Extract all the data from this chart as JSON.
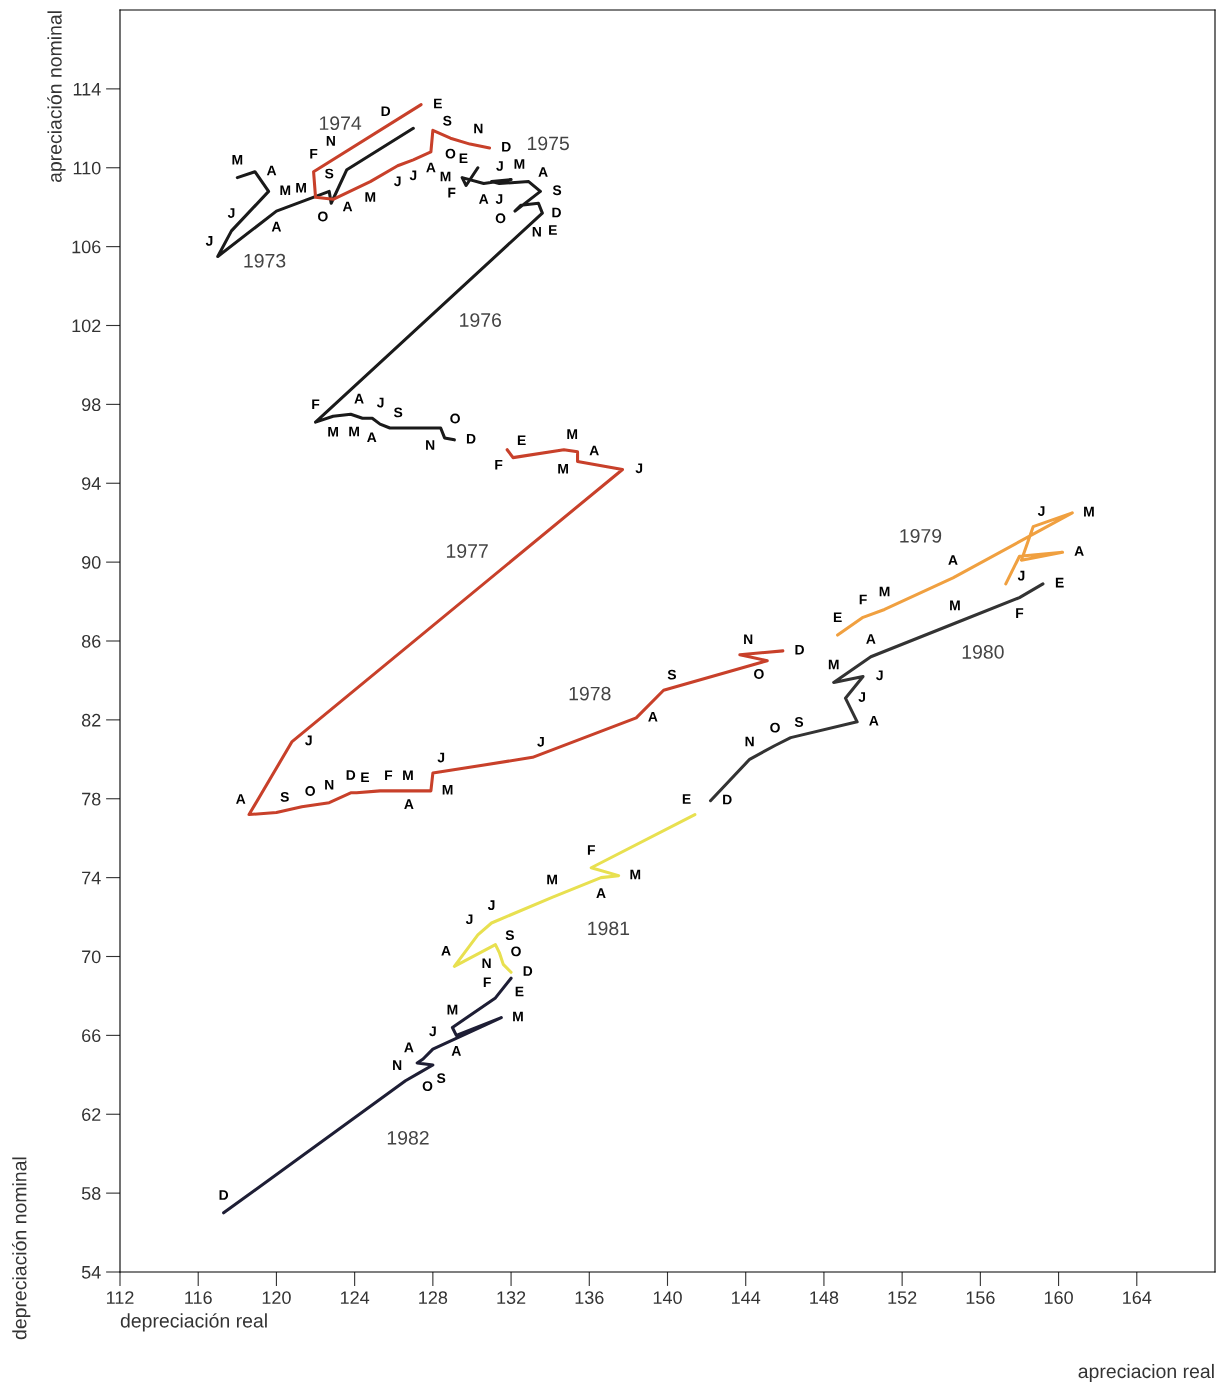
{
  "chart_data": {
    "type": "line",
    "xlabel": "depreciación real",
    "ylabel": "apreciación nominal",
    "xlim": [
      112,
      168
    ],
    "ylim": [
      54,
      118
    ],
    "xticks": [
      112,
      116,
      120,
      124,
      128,
      132,
      136,
      140,
      144,
      148,
      152,
      156,
      160,
      164
    ],
    "yticks": [
      54,
      58,
      62,
      66,
      70,
      74,
      78,
      82,
      86,
      90,
      94,
      98,
      102,
      106,
      110,
      114
    ],
    "grid": false,
    "marker": "none",
    "line_style": "solid",
    "series": [
      {
        "color": "#1a1a1a",
        "x": [
          118.0,
          118.9,
          119.6,
          117.7,
          117.0,
          120.0,
          122.7,
          122.8,
          123.6,
          127.0
        ],
        "values": [
          109.5,
          109.8,
          108.8,
          106.8,
          105.5,
          107.8,
          108.8,
          108.2,
          109.9,
          112.0
        ],
        "value_labels": [
          "M",
          "A",
          "M",
          "J",
          "J",
          "A",
          "S",
          "O",
          "N",
          "D"
        ]
      },
      {
        "color": "#c8402a",
        "x": [
          127.4,
          121.9,
          122.0,
          122.9,
          124.8,
          126.2,
          127.0,
          127.9,
          128.0,
          128.9,
          129.9,
          130.9
        ],
        "values": [
          113.2,
          109.8,
          108.5,
          108.4,
          109.3,
          110.1,
          110.4,
          110.8,
          111.9,
          111.5,
          111.2,
          111.0
        ],
        "value_labels": [
          "E",
          "F",
          "M",
          "A",
          "M",
          "J",
          "J",
          "A",
          "S",
          "O",
          "N",
          "D"
        ]
      },
      {
        "color": "#1a1a1a",
        "x": [
          130.3,
          129.7,
          129.5,
          130.6,
          132.0,
          131.0,
          131.4,
          132.9,
          133.5,
          132.2,
          132.5,
          133.4,
          133.6,
          122.0,
          122.9,
          123.8,
          124.4,
          124.9,
          125.3,
          125.8,
          128.4,
          128.6,
          129.1
        ],
        "values": [
          110.0,
          109.1,
          109.5,
          109.2,
          109.4,
          109.3,
          109.2,
          109.3,
          108.8,
          107.8,
          108.1,
          108.2,
          107.7,
          97.1,
          97.4,
          97.5,
          97.3,
          97.3,
          97.0,
          96.8,
          96.8,
          96.3,
          96.2
        ],
        "value_labels": [
          "E",
          "F",
          "M",
          "A",
          "M",
          "J",
          "J",
          "A",
          "S",
          "O",
          "N",
          "D",
          "E",
          "F",
          "M",
          "A",
          "M",
          "J",
          "A",
          "S",
          "O",
          "N",
          "D"
        ]
      },
      {
        "color": "#c8402a",
        "x": [
          131.8,
          132.1,
          134.7,
          135.4,
          135.4,
          137.7,
          120.8,
          118.6,
          120.0,
          121.3,
          122.7,
          123.8,
          124.1,
          125.3,
          126.3,
          127.2,
          127.9,
          128.0,
          133.1,
          138.4,
          139.8,
          145.1,
          143.7,
          145.9
        ],
        "values": [
          95.7,
          95.3,
          95.7,
          95.6,
          95.1,
          94.7,
          80.9,
          77.2,
          77.3,
          77.6,
          77.8,
          78.3,
          78.3,
          78.4,
          78.4,
          78.4,
          78.4,
          79.3,
          80.1,
          82.1,
          83.5,
          85.0,
          85.3,
          85.5
        ],
        "value_labels": [
          "E",
          "F",
          "M",
          "A",
          "M",
          "J",
          "J",
          "A",
          "S",
          "O",
          "N",
          "D",
          "E",
          "F",
          "M",
          "A",
          "M",
          "J",
          "J",
          "A",
          "S",
          "O",
          "N",
          "D"
        ]
      },
      {
        "color": "#f0a040",
        "x": [
          148.7,
          150.0,
          151.1,
          154.6,
          160.7,
          158.7,
          158.1,
          160.2,
          158.0,
          157.3
        ],
        "values": [
          86.3,
          87.2,
          87.6,
          89.2,
          92.5,
          91.8,
          90.1,
          90.5,
          90.3,
          88.9
        ],
        "value_labels": [
          "E",
          "F",
          "M",
          "A",
          "M",
          "J",
          "J",
          "A",
          null,
          null
        ]
      },
      {
        "color": "#333333",
        "x": [
          159.2,
          158.0,
          154.7,
          150.4,
          148.5,
          150.0,
          149.1,
          149.7,
          146.3,
          145.5,
          144.2,
          142.2
        ],
        "values": [
          88.9,
          88.2,
          86.9,
          85.2,
          83.9,
          84.2,
          83.1,
          81.9,
          81.1,
          80.7,
          80.0,
          77.9
        ],
        "value_labels": [
          "E",
          "F",
          "M",
          "A",
          "M",
          "J",
          "J",
          "A",
          "S",
          "O",
          "N",
          "D"
        ]
      },
      {
        "color": "#e8e050",
        "x": [
          141.4,
          136.1,
          137.5,
          136.6,
          134.1,
          131.0,
          130.3,
          129.1,
          131.2,
          131.4,
          131.6,
          132.0
        ],
        "values": [
          77.2,
          74.5,
          74.1,
          74.0,
          73.0,
          71.7,
          71.1,
          69.5,
          70.6,
          70.2,
          69.6,
          69.2
        ],
        "value_labels": [
          "E",
          "F",
          "M",
          "A",
          "M",
          "J",
          "J",
          "A",
          "S",
          "O",
          "N",
          "D"
        ]
      },
      {
        "color": "#1e1e35",
        "x": [
          132.0,
          131.2,
          129.0,
          129.2,
          131.5,
          128.0,
          127.5,
          127.2,
          128.0,
          127.3,
          126.6,
          117.3
        ],
        "values": [
          68.9,
          67.9,
          66.4,
          66.0,
          66.9,
          65.3,
          64.8,
          64.6,
          64.5,
          64.1,
          63.7,
          57.0
        ],
        "value_labels": [
          "E",
          "F",
          "M",
          "A",
          "M",
          "J",
          null,
          "A",
          "S",
          "O",
          "N",
          "D"
        ]
      }
    ],
    "annotations": [
      "depreciación nominal",
      "apreciacion real",
      "1973",
      "1974",
      "1975",
      "1976",
      "1977",
      "1978",
      "1979",
      "1980",
      "1981",
      "1982"
    ]
  }
}
